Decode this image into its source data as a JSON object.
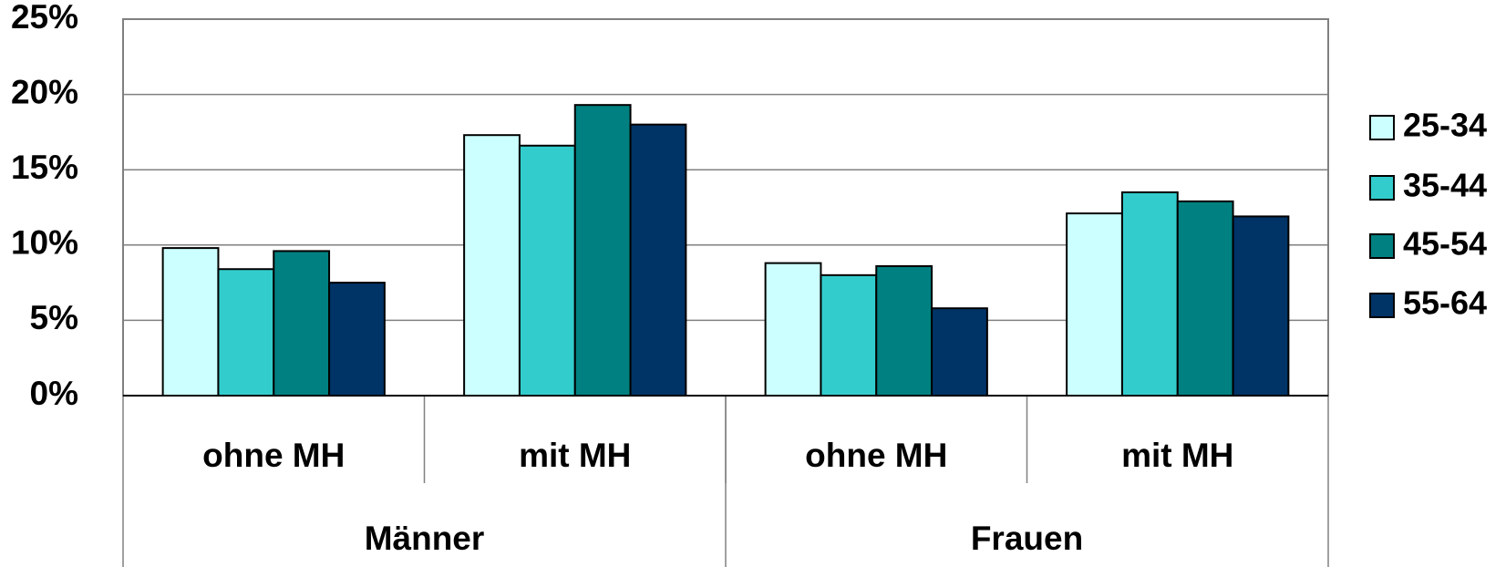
{
  "chart_data": {
    "type": "bar",
    "categories": [
      "ohne MH",
      "mit MH",
      "ohne MH",
      "mit MH"
    ],
    "category_groups": [
      "Männer",
      "Frauen"
    ],
    "series": [
      {
        "name": "25-34",
        "color": "#ccffff",
        "values": [
          9.8,
          17.3,
          8.8,
          12.1
        ]
      },
      {
        "name": "35-44",
        "color": "#33cccc",
        "values": [
          8.4,
          16.6,
          8.0,
          13.5
        ]
      },
      {
        "name": "45-54",
        "color": "#008080",
        "values": [
          9.6,
          19.3,
          8.6,
          12.9
        ]
      },
      {
        "name": "55-64",
        "color": "#003366",
        "values": [
          7.5,
          18.0,
          5.8,
          11.9
        ]
      }
    ],
    "ylim": [
      0,
      25
    ],
    "yticks": [
      {
        "value": 0,
        "label": "0%"
      },
      {
        "value": 5,
        "label": "5%"
      },
      {
        "value": 10,
        "label": "10%"
      },
      {
        "value": 15,
        "label": "15%"
      },
      {
        "value": 20,
        "label": "20%"
      },
      {
        "value": 25,
        "label": "25%"
      }
    ],
    "grid": true,
    "legend": "right"
  }
}
